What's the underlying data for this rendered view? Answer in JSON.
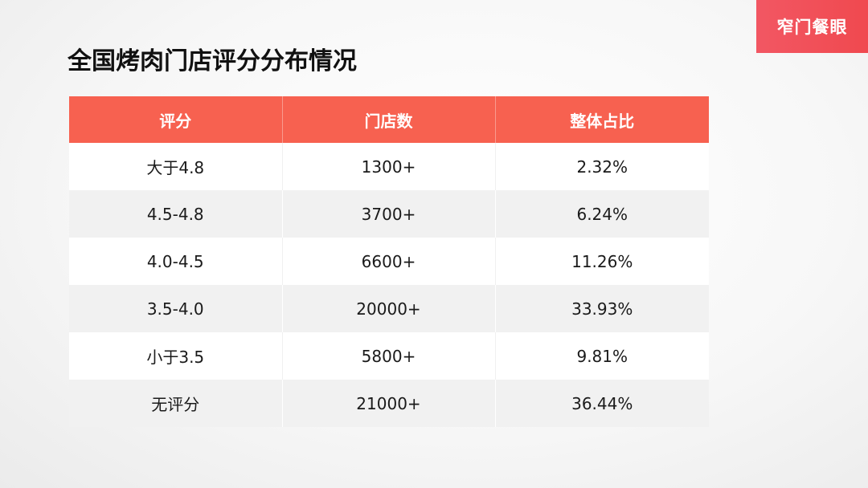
{
  "brand": {
    "label": "窄门餐眼",
    "color": "#f0494f"
  },
  "title": "全国烤肉门店评分分布情况",
  "table": {
    "header_color": "#f76150",
    "columns": [
      "评分",
      "门店数",
      "整体占比"
    ],
    "rows": [
      [
        "大于4.8",
        "1300+",
        "2.32%"
      ],
      [
        "4.5-4.8",
        "3700+",
        "6.24%"
      ],
      [
        "4.0-4.5",
        "6600+",
        "11.26%"
      ],
      [
        "3.5-4.0",
        "20000+",
        "33.93%"
      ],
      [
        "小于3.5",
        "5800+",
        "9.81%"
      ],
      [
        "无评分",
        "21000+",
        "36.44%"
      ]
    ]
  }
}
